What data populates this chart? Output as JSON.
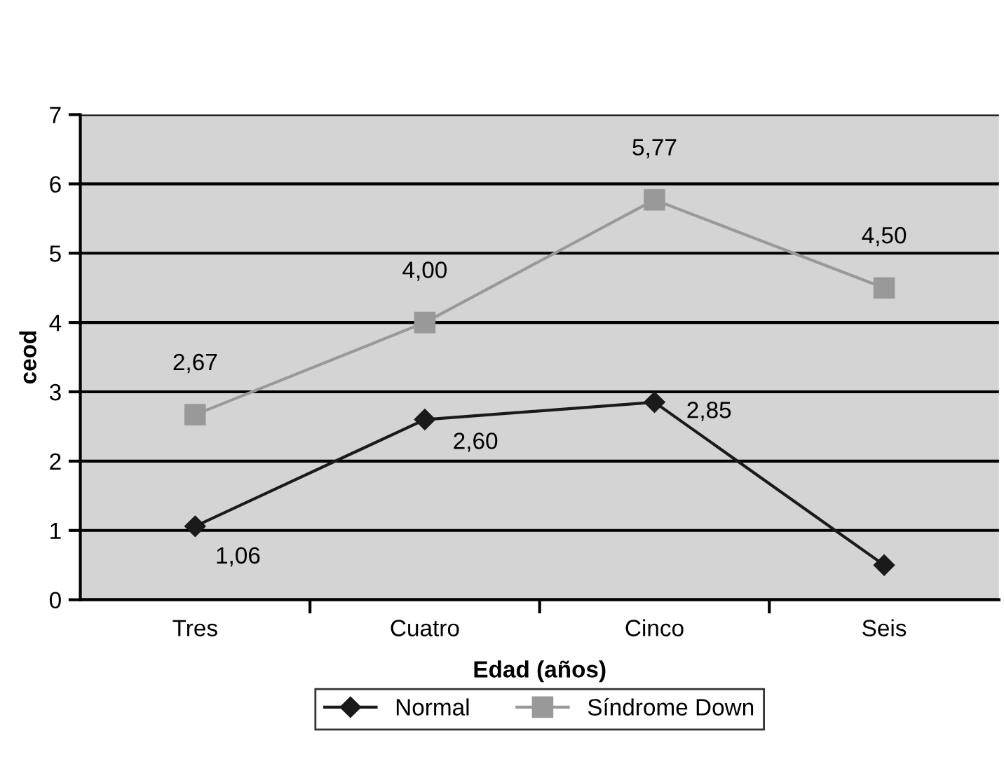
{
  "chart_data": {
    "type": "line",
    "xlabel": "Edad (años)",
    "ylabel": "ceod",
    "categories": [
      "Tres",
      "Cuatro",
      "Cinco",
      "Seis"
    ],
    "series": [
      {
        "name": "Normal",
        "color": "#1a1a1a",
        "marker": "diamond",
        "values": [
          1.06,
          2.6,
          2.85,
          0.5
        ],
        "value_labels": [
          "1,06",
          "2,60",
          "2,85",
          null
        ]
      },
      {
        "name": "Síndrome Down",
        "color": "#999999",
        "marker": "square",
        "values": [
          2.67,
          4.0,
          5.77,
          4.5
        ],
        "value_labels": [
          "2,67",
          "4,00",
          "5,77",
          "4,50"
        ]
      }
    ],
    "ylim": [
      0,
      7
    ],
    "yticks": [
      0,
      1,
      2,
      3,
      4,
      5,
      6,
      7
    ],
    "grid": "y",
    "legend": "bottom",
    "line_style": "solid"
  }
}
